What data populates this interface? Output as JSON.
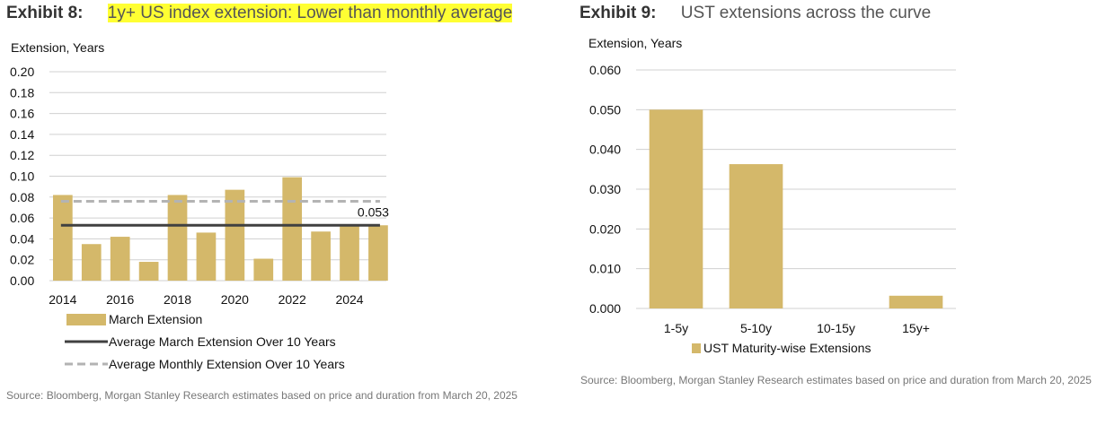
{
  "left": {
    "exhibit_label": "Exhibit 8:",
    "title_part1": "1y+ US index extension: ",
    "title_part2": "Lower than monthly average",
    "ylabel": "Extension, Years",
    "source": "Source: Bloomberg, Morgan Stanley Research estimates based on price and duration from March 20, 2025",
    "legend": [
      {
        "label": "March Extension",
        "kind": "bar"
      },
      {
        "label": "Average March Extension Over 10 Years",
        "kind": "solid-line"
      },
      {
        "label": "Average Monthly Extension Over 10 Years",
        "kind": "dashed-line"
      }
    ]
  },
  "right": {
    "exhibit_label": "Exhibit 9:",
    "title": "UST extensions across the curve",
    "ylabel": "Extension, Years",
    "source": "Source: Bloomberg, Morgan Stanley Research estimates based on price and duration from March 20, 2025",
    "legend": [
      {
        "label": "UST Maturity-wise Extensions",
        "kind": "bar"
      }
    ]
  },
  "colors": {
    "bar": "#d4b86a",
    "avg_march_line": "#404040",
    "avg_monthly_line": "#b3b3b3",
    "grid": "#d0d0d0",
    "highlight": "#ffff33"
  },
  "chart_data": [
    {
      "type": "bar",
      "x": [
        2014,
        2015,
        2016,
        2017,
        2018,
        2019,
        2020,
        2021,
        2022,
        2023,
        2024,
        2025
      ],
      "x_tick_labels": [
        "2014",
        "2016",
        "2018",
        "2020",
        "2022",
        "2024"
      ],
      "series": [
        {
          "name": "March Extension",
          "type": "bar",
          "values": [
            0.082,
            0.035,
            0.042,
            0.018,
            0.082,
            0.046,
            0.087,
            0.021,
            0.099,
            0.047,
            0.053,
            0.053
          ]
        },
        {
          "name": "Average March Extension Over 10 Years",
          "type": "line",
          "values": [
            0.053,
            0.053,
            0.053,
            0.053,
            0.053,
            0.053,
            0.053,
            0.053,
            0.053,
            0.053,
            0.053,
            0.053
          ]
        },
        {
          "name": "Average Monthly Extension Over 10 Years",
          "type": "line",
          "style": "dashed",
          "values": [
            0.076,
            0.076,
            0.076,
            0.076,
            0.076,
            0.076,
            0.076,
            0.076,
            0.076,
            0.076,
            0.076,
            0.076
          ]
        }
      ],
      "annotation": "0.053",
      "ylim": [
        0,
        0.2
      ],
      "y_ticks": [
        "0.20",
        "0.18",
        "0.16",
        "0.14",
        "0.12",
        "0.10",
        "0.08",
        "0.06",
        "0.04",
        "0.02",
        "0.00"
      ],
      "grid": true,
      "legend_position": "bottom"
    },
    {
      "type": "bar",
      "categories": [
        "1-5y",
        "5-10y",
        "10-15y",
        "15y+"
      ],
      "series": [
        {
          "name": "UST Maturity-wise Extensions",
          "values": [
            0.05,
            0.0363,
            0.0,
            0.0032
          ]
        }
      ],
      "ylim": [
        0,
        0.06
      ],
      "y_ticks": [
        "0.060",
        "0.050",
        "0.040",
        "0.030",
        "0.020",
        "0.010",
        "0.000"
      ],
      "grid": true,
      "legend_position": "bottom"
    }
  ]
}
